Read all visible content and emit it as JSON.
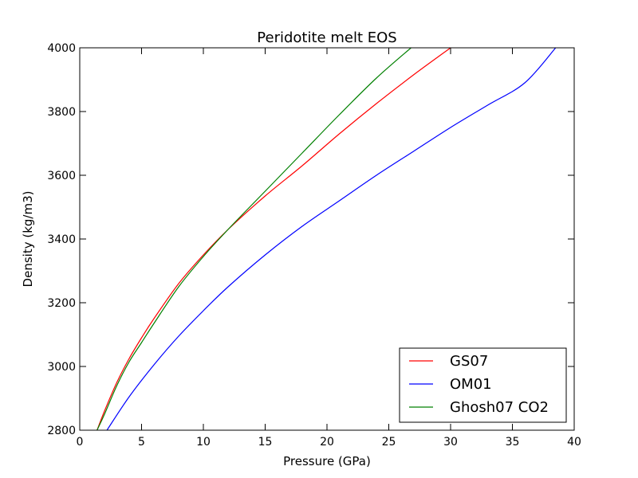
{
  "chart_data": {
    "type": "line",
    "title": "Peridotite melt EOS",
    "xlabel": "Pressure (GPa)",
    "ylabel": "Density (kg/m3)",
    "xlim": [
      0,
      40
    ],
    "ylim": [
      2800,
      4000
    ],
    "xticks": [
      0,
      5,
      10,
      15,
      20,
      25,
      30,
      35,
      40
    ],
    "yticks": [
      2800,
      3000,
      3200,
      3400,
      3600,
      3800,
      4000
    ],
    "grid": false,
    "legend_position": "lower-right",
    "series": [
      {
        "name": "GS07",
        "color": "#ff0000",
        "x": [
          1.4,
          2,
          3,
          4,
          5,
          6,
          8,
          10,
          12,
          15,
          18,
          21,
          24,
          27,
          30
        ],
        "y": [
          2800,
          2860,
          2950,
          3025,
          3090,
          3150,
          3260,
          3350,
          3430,
          3535,
          3630,
          3730,
          3825,
          3915,
          4000
        ]
      },
      {
        "name": "OM01",
        "color": "#0000ff",
        "x": [
          2.2,
          4,
          6,
          8,
          10,
          12,
          15,
          18,
          21,
          24,
          27,
          30,
          33,
          36,
          38.5
        ],
        "y": [
          2800,
          2905,
          3005,
          3095,
          3175,
          3250,
          3350,
          3440,
          3520,
          3600,
          3675,
          3750,
          3820,
          3890,
          4000
        ]
      },
      {
        "name": "Ghosh07 CO2",
        "color": "#008000",
        "x": [
          1.4,
          2,
          3,
          4,
          5,
          6,
          8,
          10,
          12,
          15,
          18,
          21,
          24,
          26.8
        ],
        "y": [
          2800,
          2850,
          2940,
          3015,
          3075,
          3135,
          3250,
          3345,
          3430,
          3550,
          3670,
          3790,
          3905,
          4000
        ]
      }
    ]
  }
}
